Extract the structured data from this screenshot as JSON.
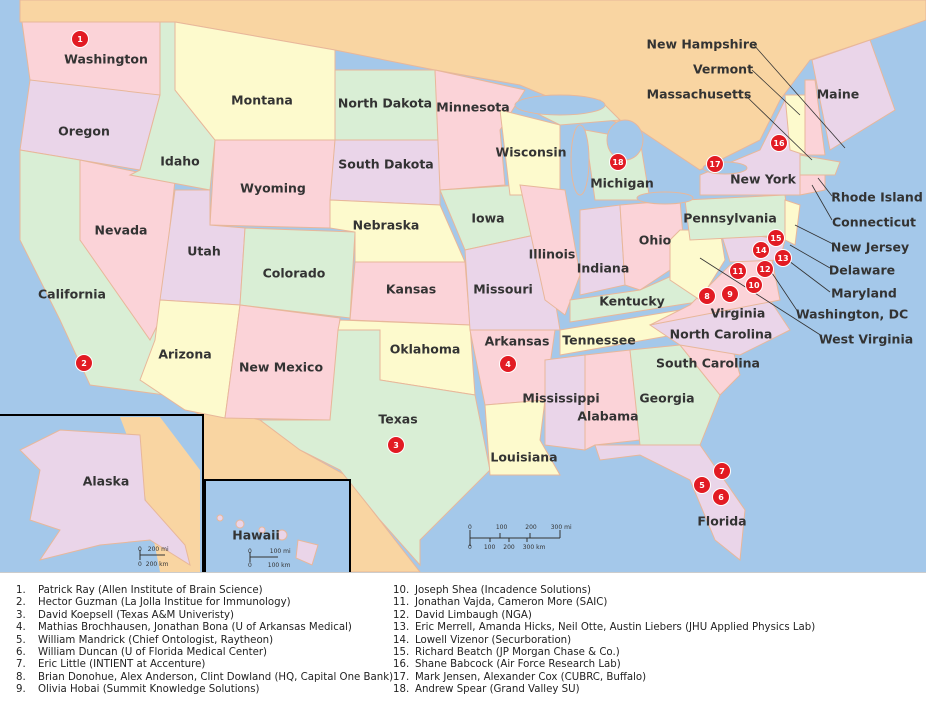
{
  "colors": {
    "ocean": "#a4c8ea",
    "foreign": "#f9d5a2",
    "pink": "#fbd3d8",
    "yellow": "#fdfacd",
    "green": "#d9eed5",
    "purple": "#ead5e9",
    "marker": "#e21b23"
  },
  "states": [
    "Washington",
    "Oregon",
    "California",
    "Nevada",
    "Idaho",
    "Montana",
    "Wyoming",
    "Utah",
    "Colorado",
    "Arizona",
    "New Mexico",
    "North Dakota",
    "South Dakota",
    "Nebraska",
    "Kansas",
    "Oklahoma",
    "Texas",
    "Minnesota",
    "Iowa",
    "Missouri",
    "Arkansas",
    "Louisiana",
    "Wisconsin",
    "Illinois",
    "Michigan",
    "Indiana",
    "Ohio",
    "Kentucky",
    "Tennessee",
    "Mississippi",
    "Alabama",
    "Georgia",
    "Florida",
    "South Carolina",
    "North Carolina",
    "Virginia",
    "Pennsylvania",
    "New York",
    "Maine",
    "New Hampshire",
    "Vermont",
    "Massachusetts",
    "Rhode Island",
    "Connecticut",
    "New Jersey",
    "Delaware",
    "Maryland",
    "Washington, DC",
    "West Virginia",
    "Alaska",
    "Hawaii"
  ],
  "markers": [
    "1",
    "2",
    "3",
    "4",
    "5",
    "6",
    "7",
    "8",
    "9",
    "10",
    "11",
    "12",
    "13",
    "14",
    "15",
    "16",
    "17",
    "18"
  ],
  "scale_main": {
    "mi": [
      "0",
      "100",
      "200",
      "300 mi"
    ],
    "km": [
      "0",
      "100",
      "200",
      "300 km"
    ]
  },
  "scale_alaska": {
    "mi": [
      "0",
      "200 mi"
    ],
    "km": [
      "0",
      "200 km"
    ]
  },
  "scale_hawaii": {
    "mi": [
      "0",
      "100 mi"
    ],
    "km": [
      "0",
      "100 km"
    ]
  },
  "legend": [
    {
      "n": "1.",
      "text": "Patrick Ray (Allen Institute of Brain Science)"
    },
    {
      "n": "2.",
      "text": "Hector Guzman (La Jolla Institue for Immunology)"
    },
    {
      "n": "3.",
      "text": "David Koepsell (Texas A&M Univeristy)"
    },
    {
      "n": "4.",
      "text": "Mathias Brochhausen, Jonathan Bona (U of Arkansas Medical)"
    },
    {
      "n": "5.",
      "text": "William Mandrick (Chief Ontologist, Raytheon)"
    },
    {
      "n": "6.",
      "text": "William Duncan (U of Florida Medical Center)"
    },
    {
      "n": "7.",
      "text": "Eric Little (INTIENT at Accenture)"
    },
    {
      "n": "8.",
      "text": "Brian Donohue, Alex Anderson, Clint Dowland (HQ, Capital One Bank)"
    },
    {
      "n": "9.",
      "text": "Olivia Hobai (Summit Knowledge Solutions)"
    },
    {
      "n": "10.",
      "text": "Joseph Shea (Incadence Solutions)"
    },
    {
      "n": "11.",
      "text": "Jonathan Vajda, Cameron More (SAIC)"
    },
    {
      "n": "12.",
      "text": "David Limbaugh (NGA)"
    },
    {
      "n": "13.",
      "text": "Eric Merrell, Amanda Hicks, Neil Otte, Austin Liebers (JHU Applied Physics Lab)"
    },
    {
      "n": "14.",
      "text": "Lowell Vizenor (Securboration)"
    },
    {
      "n": "15.",
      "text": "Richard Beatch (JP Morgan Chase & Co.)"
    },
    {
      "n": "16.",
      "text": "Shane Babcock (Air Force Research Lab)"
    },
    {
      "n": "17.",
      "text": "Mark Jensen, Alexander Cox (CUBRC, Buffalo)"
    },
    {
      "n": "18.",
      "text": "Andrew Spear (Grand Valley SU)"
    }
  ]
}
